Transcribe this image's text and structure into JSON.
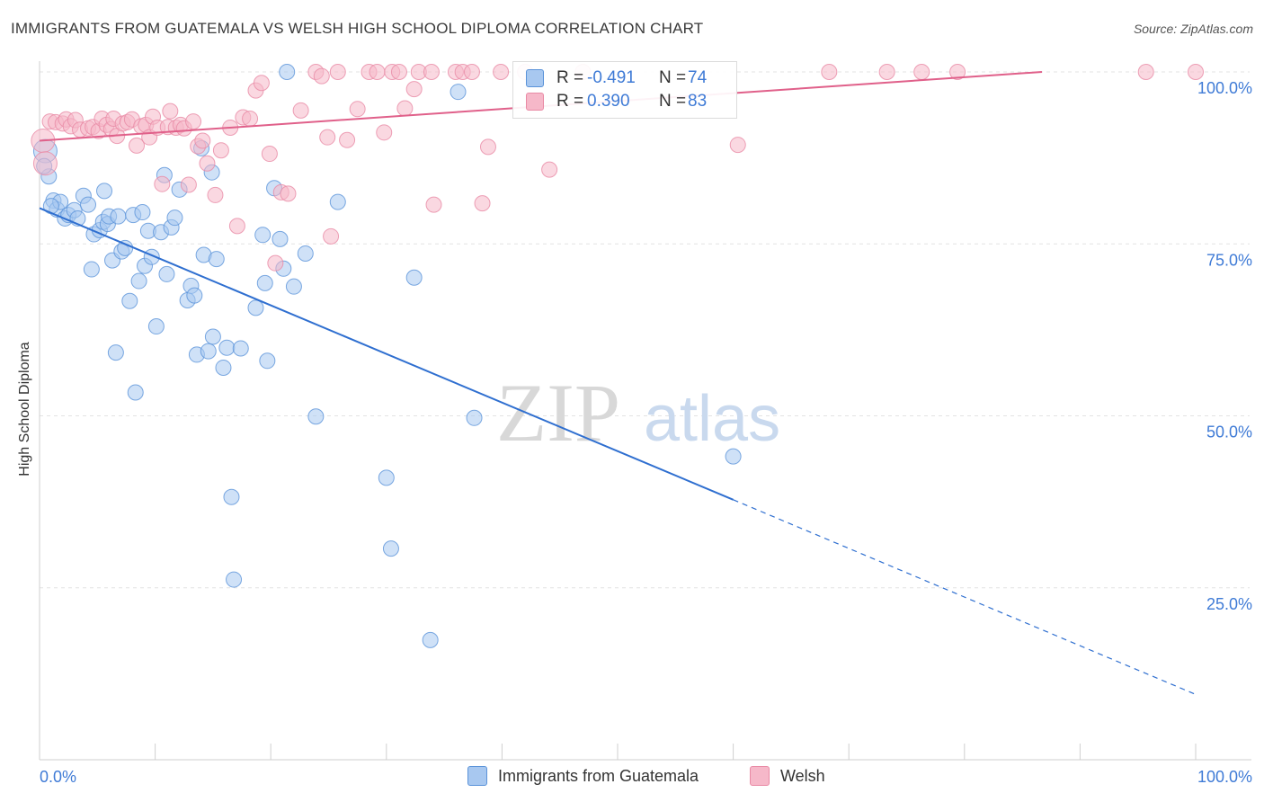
{
  "title": "IMMIGRANTS FROM GUATEMALA VS WELSH HIGH SCHOOL DIPLOMA CORRELATION CHART",
  "source": "Source: ZipAtlas.com",
  "watermark": {
    "zip": "ZIP",
    "atlas": "atlas"
  },
  "legend": {
    "r_label": "R =",
    "n_label": "N =",
    "series": [
      {
        "name": "Immigrants from Guatemala",
        "r": "-0.491",
        "n": "74",
        "fill": "#a8c8f0",
        "stroke": "#5b93d9",
        "line": "#2f6fd0"
      },
      {
        "name": "Welsh",
        "r": "0.390",
        "n": "83",
        "fill": "#f6b8c9",
        "stroke": "#e98aa5",
        "line": "#e0608a"
      }
    ]
  },
  "chart_data": {
    "type": "scatter",
    "xlabel": "",
    "ylabel": "High School Diploma",
    "xlim": [
      0,
      100
    ],
    "ylim": [
      0,
      100
    ],
    "x_tick_labels": [
      "0.0%",
      "100.0%"
    ],
    "y_tick_labels": [
      "100.0%",
      "75.0%",
      "50.0%",
      "25.0%"
    ],
    "y_ticks": [
      100,
      75,
      50,
      25
    ],
    "grid": true,
    "series": [
      {
        "name": "Immigrants from Guatemala",
        "r": -0.491,
        "n": 74,
        "trend": {
          "x0": 0,
          "y0": 80.2,
          "x1": 60,
          "y1": 37.8,
          "dash_to_x": 100,
          "dash_to_y": 9.5
        },
        "points": [
          [
            0.5,
            88.5
          ],
          [
            0.8,
            84.8
          ],
          [
            1.2,
            81.3
          ],
          [
            1.5,
            80.0
          ],
          [
            1.8,
            81.1
          ],
          [
            2.2,
            78.7
          ],
          [
            2.5,
            79.2
          ],
          [
            3.0,
            79.9
          ],
          [
            3.3,
            78.7
          ],
          [
            3.8,
            82.0
          ],
          [
            4.2,
            80.7
          ],
          [
            4.5,
            71.3
          ],
          [
            4.7,
            76.4
          ],
          [
            5.2,
            77.0
          ],
          [
            5.5,
            78.2
          ],
          [
            5.6,
            82.7
          ],
          [
            5.9,
            77.9
          ],
          [
            6.0,
            79.0
          ],
          [
            6.3,
            72.6
          ],
          [
            6.6,
            59.2
          ],
          [
            6.8,
            79.0
          ],
          [
            7.1,
            73.9
          ],
          [
            7.4,
            74.4
          ],
          [
            7.8,
            66.7
          ],
          [
            8.1,
            79.2
          ],
          [
            8.3,
            53.4
          ],
          [
            8.6,
            69.6
          ],
          [
            8.9,
            79.6
          ],
          [
            9.1,
            71.8
          ],
          [
            9.4,
            76.9
          ],
          [
            9.7,
            73.1
          ],
          [
            10.1,
            63.0
          ],
          [
            10.5,
            76.7
          ],
          [
            10.8,
            85.0
          ],
          [
            11.0,
            70.6
          ],
          [
            11.4,
            77.4
          ],
          [
            11.7,
            78.8
          ],
          [
            12.1,
            82.9
          ],
          [
            12.8,
            66.8
          ],
          [
            13.1,
            68.9
          ],
          [
            13.4,
            67.5
          ],
          [
            13.6,
            58.9
          ],
          [
            14.0,
            88.9
          ],
          [
            14.2,
            73.4
          ],
          [
            14.6,
            59.4
          ],
          [
            14.9,
            85.4
          ],
          [
            15.0,
            61.5
          ],
          [
            15.3,
            72.8
          ],
          [
            15.9,
            57.0
          ],
          [
            16.2,
            59.9
          ],
          [
            16.6,
            38.2
          ],
          [
            16.8,
            26.2
          ],
          [
            17.4,
            59.8
          ],
          [
            18.7,
            65.7
          ],
          [
            19.3,
            76.3
          ],
          [
            19.5,
            69.3
          ],
          [
            19.7,
            58.0
          ],
          [
            20.3,
            83.1
          ],
          [
            20.8,
            75.7
          ],
          [
            21.1,
            71.4
          ],
          [
            21.4,
            100.0
          ],
          [
            22.0,
            68.8
          ],
          [
            23.0,
            73.6
          ],
          [
            23.9,
            49.9
          ],
          [
            25.8,
            81.1
          ],
          [
            30.0,
            41.0
          ],
          [
            30.4,
            30.7
          ],
          [
            32.4,
            70.1
          ],
          [
            33.8,
            17.4
          ],
          [
            36.2,
            97.1
          ],
          [
            37.6,
            49.7
          ],
          [
            60.0,
            44.1
          ],
          [
            0.4,
            86.3
          ],
          [
            1.0,
            80.5
          ]
        ]
      },
      {
        "name": "Welsh",
        "r": 0.39,
        "n": 83,
        "trend": {
          "x0": 0,
          "y0": 90.0,
          "x1": 86.7,
          "y1": 100.0
        },
        "points": [
          [
            0.3,
            90.0
          ],
          [
            0.5,
            86.7
          ],
          [
            0.9,
            92.8
          ],
          [
            1.4,
            92.7
          ],
          [
            2.0,
            92.5
          ],
          [
            2.3,
            93.1
          ],
          [
            2.7,
            92.1
          ],
          [
            3.1,
            93.0
          ],
          [
            3.5,
            91.6
          ],
          [
            4.2,
            91.8
          ],
          [
            4.6,
            92.0
          ],
          [
            5.1,
            91.4
          ],
          [
            5.4,
            93.2
          ],
          [
            5.8,
            92.3
          ],
          [
            6.2,
            91.7
          ],
          [
            6.4,
            93.2
          ],
          [
            6.7,
            90.7
          ],
          [
            7.2,
            92.5
          ],
          [
            7.6,
            92.7
          ],
          [
            8.0,
            93.1
          ],
          [
            8.4,
            89.3
          ],
          [
            8.8,
            92.1
          ],
          [
            9.2,
            92.3
          ],
          [
            9.5,
            90.5
          ],
          [
            9.8,
            93.5
          ],
          [
            10.2,
            91.9
          ],
          [
            10.6,
            83.7
          ],
          [
            11.1,
            92.0
          ],
          [
            11.3,
            94.3
          ],
          [
            11.8,
            91.9
          ],
          [
            12.2,
            92.3
          ],
          [
            12.5,
            91.8
          ],
          [
            12.9,
            83.6
          ],
          [
            13.3,
            92.8
          ],
          [
            13.7,
            89.2
          ],
          [
            14.1,
            90.0
          ],
          [
            14.5,
            86.7
          ],
          [
            15.2,
            82.1
          ],
          [
            15.7,
            88.6
          ],
          [
            16.5,
            91.9
          ],
          [
            17.1,
            77.6
          ],
          [
            17.6,
            93.4
          ],
          [
            18.2,
            93.2
          ],
          [
            18.7,
            97.3
          ],
          [
            19.2,
            98.4
          ],
          [
            19.9,
            88.1
          ],
          [
            20.4,
            72.2
          ],
          [
            20.9,
            82.5
          ],
          [
            21.5,
            82.3
          ],
          [
            22.6,
            94.4
          ],
          [
            23.9,
            100.0
          ],
          [
            24.4,
            99.4
          ],
          [
            24.9,
            90.5
          ],
          [
            25.2,
            76.1
          ],
          [
            25.8,
            100.0
          ],
          [
            26.6,
            90.1
          ],
          [
            27.5,
            94.6
          ],
          [
            28.5,
            100.0
          ],
          [
            29.2,
            100.0
          ],
          [
            29.8,
            91.2
          ],
          [
            30.5,
            100.0
          ],
          [
            31.1,
            100.0
          ],
          [
            31.6,
            94.7
          ],
          [
            32.4,
            97.5
          ],
          [
            32.8,
            100.0
          ],
          [
            33.9,
            100.0
          ],
          [
            34.1,
            80.7
          ],
          [
            36.0,
            100.0
          ],
          [
            36.6,
            100.0
          ],
          [
            37.4,
            100.0
          ],
          [
            38.3,
            80.9
          ],
          [
            38.8,
            89.1
          ],
          [
            39.9,
            100.0
          ],
          [
            42.0,
            100.0
          ],
          [
            44.1,
            85.8
          ],
          [
            47.0,
            100.0
          ],
          [
            60.4,
            89.4
          ],
          [
            68.3,
            100.0
          ],
          [
            73.3,
            100.0
          ],
          [
            76.3,
            100.0
          ],
          [
            79.4,
            100.0
          ],
          [
            95.7,
            100.0
          ],
          [
            100.0,
            100.0
          ]
        ]
      }
    ]
  }
}
